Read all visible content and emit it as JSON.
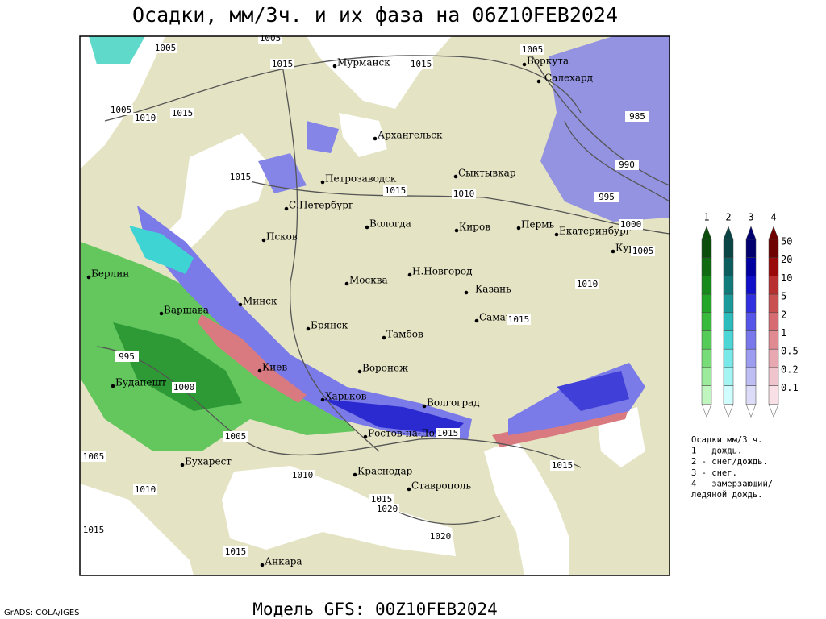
{
  "header": {
    "title": "Осадки, мм/3ч. и их фаза на 06Z10FEB2024"
  },
  "map": {
    "cities": [
      "Мурманск",
      "Воркута",
      "Салехард",
      "Архангельск",
      "Петрозаводск",
      "Сыктывкар",
      "С.Петербург",
      "Вологда",
      "Киров",
      "Пермь",
      "Екатеринбург",
      "Курган",
      "Псков",
      "Н.Новгород",
      "Казань",
      "Москва",
      "Берлин",
      "Минск",
      "Варшава",
      "Брянск",
      "Самара",
      "Тамбов",
      "Киев",
      "Воронеж",
      "Будапешт",
      "Харьков",
      "Волгоград",
      "Ростов-на-Дону",
      "Бухарест",
      "Краснодар",
      "Ставрополь",
      "Анкара"
    ],
    "isobar_labels": [
      1005,
      1005,
      1015,
      1015,
      1005,
      1005,
      1010,
      1015,
      985,
      990,
      995,
      1000,
      1015,
      1015,
      1010,
      1005,
      1010,
      1015,
      995,
      1000,
      1005,
      1015,
      1005,
      1010,
      1010,
      1015,
      1020,
      1020,
      1015,
      1015,
      1015
    ]
  },
  "legend": {
    "phases": [
      "1",
      "2",
      "3",
      "4"
    ],
    "scale": [
      50,
      20,
      10,
      5,
      2,
      1,
      0.5,
      0.2,
      0.1
    ],
    "notes": [
      "Осадки мм/3 ч.",
      "1 - дождь.",
      "2 - снег/дождь.",
      "3 - снег.",
      "4 - замерзающий/",
      "ледяной дождь."
    ]
  },
  "footer": {
    "model": "Модель GFS: 00Z10FEB2024",
    "credit": "GrADS: COLA/IGES"
  }
}
